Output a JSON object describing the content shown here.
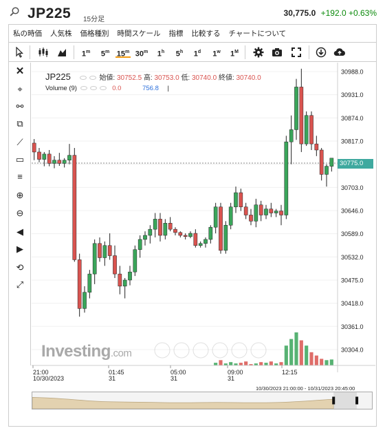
{
  "header": {
    "symbol": "JP225",
    "timeframe": "15分足",
    "price": "30,775.0",
    "change": "+192.0 +0.63%"
  },
  "menu": [
    "私の時価",
    "人気株",
    "価格種別",
    "時間スケール",
    "指標",
    "比較する",
    "チャートについて"
  ],
  "toolbar": {
    "intervals": [
      {
        "main": "1",
        "sup": "m"
      },
      {
        "main": "5",
        "sup": "m"
      },
      {
        "main": "15",
        "sup": "m"
      },
      {
        "main": "30",
        "sup": "m"
      },
      {
        "main": "1",
        "sup": "h"
      },
      {
        "main": "5",
        "sup": "h"
      },
      {
        "main": "1",
        "sup": "d"
      },
      {
        "main": "1",
        "sup": "w"
      },
      {
        "main": "1",
        "sup": "M"
      }
    ],
    "active_interval": "15m"
  },
  "legend": {
    "symbol": "JP225",
    "open_label": "始値:",
    "open": "30752.5",
    "high_label": "高:",
    "high": "30753.0",
    "low_label": "低:",
    "low": "30740.0",
    "close_label": "終値:",
    "close": "30740.0",
    "volume_label": "Volume (9)",
    "volume_value1": "0.0",
    "volume_value2": "756.8",
    "volume_cursor": "|"
  },
  "price_axis": [
    "30988.0",
    "30931.0",
    "30874.0",
    "30817.0",
    "30760.0",
    "30703.0",
    "30646.0",
    "30589.0",
    "30532.0",
    "30475.0",
    "30418.0",
    "30361.0",
    "30304.0"
  ],
  "current_price_label": "30775.0",
  "time_axis": [
    {
      "time": "21:00",
      "date": "10/30/2023"
    },
    {
      "time": "01:45",
      "date": "31"
    },
    {
      "time": "05:00",
      "date": "31"
    },
    {
      "time": "09:00",
      "date": "31"
    },
    {
      "time": "12:15",
      "date": ""
    }
  ],
  "watermark": {
    "brand": "Investing",
    "suffix": ".com"
  },
  "range_label": "10/30/2023 21:00:00 - 10/31/2023 20:45:00",
  "colors": {
    "up": "#3aa55a",
    "down": "#d9534f",
    "price_box": "#3fa99f",
    "active_tab": "#f39c12"
  },
  "chart_data": {
    "type": "candlestick",
    "title": "JP225",
    "ylim": [
      30265,
      31010
    ],
    "candles": [
      [
        30812,
        30822,
        30770,
        30790
      ],
      [
        30790,
        30800,
        30765,
        30772
      ],
      [
        30772,
        30790,
        30755,
        30785
      ],
      [
        30785,
        30795,
        30755,
        30762
      ],
      [
        30762,
        30780,
        30750,
        30770
      ],
      [
        30770,
        30788,
        30756,
        30762
      ],
      [
        30762,
        30775,
        30752,
        30770
      ],
      [
        30770,
        30810,
        30760,
        30782
      ],
      [
        30782,
        30800,
        30520,
        30525
      ],
      [
        30525,
        30540,
        30385,
        30405
      ],
      [
        30405,
        30460,
        30395,
        30445
      ],
      [
        30445,
        30500,
        30430,
        30490
      ],
      [
        30490,
        30575,
        30465,
        30565
      ],
      [
        30565,
        30580,
        30520,
        30530
      ],
      [
        30530,
        30570,
        30510,
        30560
      ],
      [
        30560,
        30590,
        30525,
        30535
      ],
      [
        30535,
        30560,
        30480,
        30490
      ],
      [
        30490,
        30510,
        30440,
        30460
      ],
      [
        30460,
        30480,
        30430,
        30475
      ],
      [
        30475,
        30510,
        30462,
        30495
      ],
      [
        30495,
        30560,
        30485,
        30550
      ],
      [
        30550,
        30585,
        30530,
        30575
      ],
      [
        30575,
        30595,
        30560,
        30585
      ],
      [
        30585,
        30610,
        30565,
        30600
      ],
      [
        30600,
        30640,
        30580,
        30625
      ],
      [
        30625,
        30640,
        30570,
        30585
      ],
      [
        30585,
        30625,
        30575,
        30615
      ],
      [
        30615,
        30630,
        30595,
        30600
      ],
      [
        30600,
        30605,
        30585,
        30592
      ],
      [
        30592,
        30595,
        30580,
        30585
      ],
      [
        30585,
        30590,
        30575,
        30582
      ],
      [
        30582,
        30595,
        30578,
        30590
      ],
      [
        30590,
        30600,
        30555,
        30560
      ],
      [
        30560,
        30570,
        30555,
        30565
      ],
      [
        30565,
        30580,
        30555,
        30575
      ],
      [
        30575,
        30610,
        30565,
        30605
      ],
      [
        30605,
        30665,
        30590,
        30655
      ],
      [
        30655,
        30665,
        30540,
        30548
      ],
      [
        30548,
        30620,
        30540,
        30610
      ],
      [
        30610,
        30665,
        30600,
        30655
      ],
      [
        30655,
        30705,
        30640,
        30690
      ],
      [
        30690,
        30700,
        30645,
        30655
      ],
      [
        30655,
        30665,
        30625,
        30635
      ],
      [
        30635,
        30650,
        30610,
        30620
      ],
      [
        30620,
        30675,
        30605,
        30660
      ],
      [
        30660,
        30670,
        30620,
        30635
      ],
      [
        30635,
        30660,
        30625,
        30650
      ],
      [
        30650,
        30665,
        30630,
        30640
      ],
      [
        30640,
        30650,
        30630,
        30645
      ],
      [
        30645,
        30660,
        30610,
        30635
      ],
      [
        30635,
        30830,
        30625,
        30815
      ],
      [
        30815,
        30880,
        30760,
        30845
      ],
      [
        30845,
        30970,
        30820,
        30950
      ],
      [
        30950,
        30995,
        30790,
        30810
      ],
      [
        30810,
        30890,
        30805,
        30880
      ],
      [
        30880,
        30890,
        30795,
        30810
      ],
      [
        30810,
        30830,
        30780,
        30795
      ],
      [
        30795,
        30800,
        30720,
        30735
      ],
      [
        30735,
        30760,
        30705,
        30755
      ],
      [
        30755,
        30770,
        30742,
        30775
      ]
    ],
    "volume": [
      0,
      0,
      0,
      0,
      0,
      0,
      0,
      0,
      0,
      0,
      0,
      0,
      0,
      0,
      0,
      0,
      0,
      0,
      0,
      0,
      0,
      0,
      0,
      0,
      0,
      0,
      0,
      0,
      0,
      0,
      0,
      0,
      0,
      0,
      0,
      0,
      4,
      8,
      3,
      5,
      3,
      4,
      6,
      2,
      3,
      5,
      4,
      6,
      3,
      5,
      30,
      40,
      50,
      38,
      30,
      20,
      15,
      10,
      8,
      9
    ]
  }
}
